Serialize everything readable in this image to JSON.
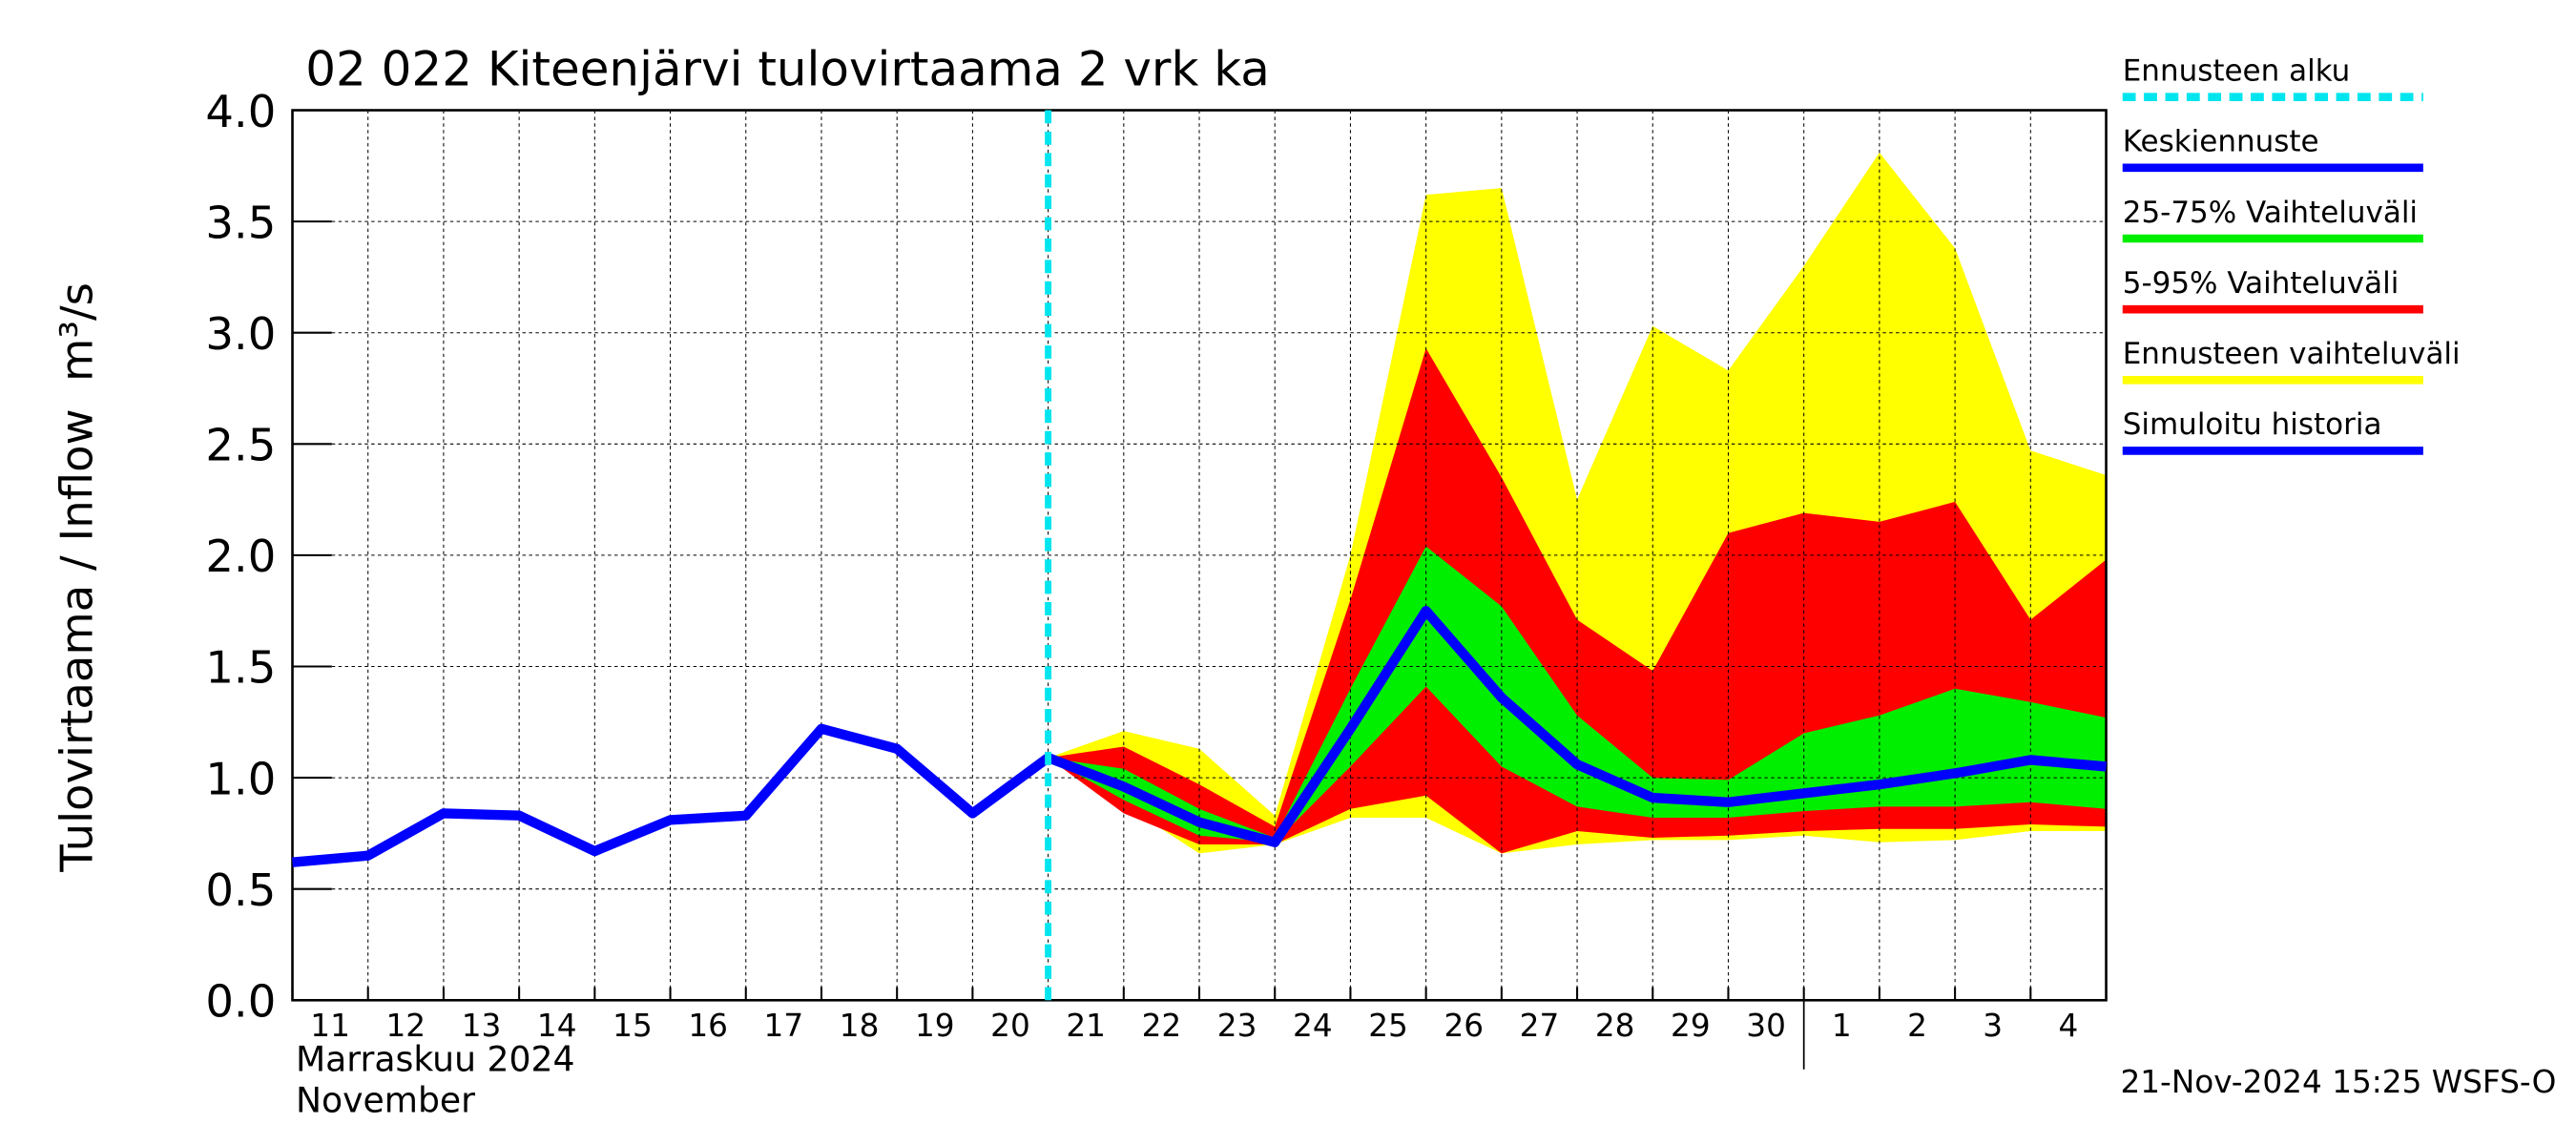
{
  "chart_data": {
    "type": "line",
    "title": "02 022 Kiteenjärvi tulovirtaama 2 vrk ka",
    "y_label": "Tulovirtaama / Inflow",
    "y_unit": "m³/s",
    "x_label_fi": "Marraskuu 2024",
    "x_label_en": "November",
    "footer": "21-Nov-2024 15:25 WSFS-O",
    "categories": [
      "11",
      "12",
      "13",
      "14",
      "15",
      "16",
      "17",
      "18",
      "19",
      "20",
      "21",
      "22",
      "23",
      "24",
      "25",
      "26",
      "27",
      "28",
      "29",
      "30",
      "1",
      "2",
      "3",
      "4",
      null
    ],
    "ylim": [
      0,
      4
    ],
    "yticks": [
      {
        "value": 0,
        "label": "0.0"
      },
      {
        "value": 0.5,
        "label": "0.5"
      },
      {
        "value": 1,
        "label": "1.0"
      },
      {
        "value": 1.5,
        "label": "1.5"
      },
      {
        "value": 2,
        "label": "2.0"
      },
      {
        "value": 2.5,
        "label": "2.5"
      },
      {
        "value": 3,
        "label": "3.0"
      },
      {
        "value": 3.5,
        "label": "3.5"
      },
      {
        "value": 4,
        "label": "4.0"
      }
    ],
    "grid": true,
    "forecast_start": {
      "name": "Ennusteen alku",
      "color": "#00e5ee",
      "category": 10
    },
    "series": [
      {
        "name": "Keskiennuste",
        "color": "#0000ff",
        "kind": "line",
        "values": [
          null,
          null,
          null,
          null,
          null,
          null,
          null,
          null,
          null,
          null,
          1.09,
          0.96,
          0.8,
          0.71,
          1.22,
          1.75,
          1.36,
          1.06,
          0.91,
          0.89,
          0.93,
          0.97,
          1.02,
          1.08,
          1.05
        ]
      },
      {
        "name": "25-75% Vaihteluväli",
        "color": "#00ee00",
        "kind": "band",
        "low": [
          null,
          null,
          null,
          null,
          null,
          null,
          null,
          null,
          null,
          null,
          1.09,
          0.9,
          0.74,
          0.71,
          1.05,
          1.41,
          1.05,
          0.87,
          0.82,
          0.82,
          0.85,
          0.87,
          0.87,
          0.89,
          0.86
        ],
        "high": [
          null,
          null,
          null,
          null,
          null,
          null,
          null,
          null,
          null,
          null,
          1.09,
          1.04,
          0.86,
          0.73,
          1.4,
          2.04,
          1.77,
          1.28,
          1.0,
          0.99,
          1.2,
          1.28,
          1.4,
          1.34,
          1.27
        ]
      },
      {
        "name": "5-95% Vaihteluväli",
        "color": "#ff0000",
        "kind": "band",
        "low": [
          null,
          null,
          null,
          null,
          null,
          null,
          null,
          null,
          null,
          null,
          1.09,
          0.84,
          0.7,
          0.7,
          0.86,
          0.92,
          0.66,
          0.76,
          0.73,
          0.74,
          0.76,
          0.77,
          0.77,
          0.79,
          0.78
        ],
        "high": [
          null,
          null,
          null,
          null,
          null,
          null,
          null,
          null,
          null,
          null,
          1.09,
          1.14,
          0.97,
          0.78,
          1.8,
          2.93,
          2.35,
          1.71,
          1.48,
          2.1,
          2.19,
          2.15,
          2.24,
          1.71,
          1.98
        ]
      },
      {
        "name": "Ennusteen vaihteluväli",
        "color": "#ffff00",
        "kind": "band",
        "low": [
          null,
          null,
          null,
          null,
          null,
          null,
          null,
          null,
          null,
          null,
          1.09,
          0.88,
          0.66,
          0.7,
          0.82,
          0.82,
          0.66,
          0.7,
          0.72,
          0.72,
          0.74,
          0.71,
          0.72,
          0.76,
          0.76
        ],
        "high": [
          null,
          null,
          null,
          null,
          null,
          null,
          null,
          null,
          null,
          null,
          1.09,
          1.21,
          1.13,
          0.83,
          2.0,
          3.62,
          3.65,
          2.25,
          3.03,
          2.83,
          3.3,
          3.81,
          3.38,
          2.47,
          2.36
        ]
      },
      {
        "name": "Simuloitu historia",
        "color": "#0000ff",
        "kind": "line",
        "values": [
          0.62,
          0.65,
          0.84,
          0.83,
          0.67,
          0.81,
          0.83,
          1.22,
          1.13,
          0.84,
          1.09,
          null,
          null,
          null,
          null,
          null,
          null,
          null,
          null,
          null,
          null,
          null,
          null,
          null,
          null
        ]
      }
    ]
  }
}
